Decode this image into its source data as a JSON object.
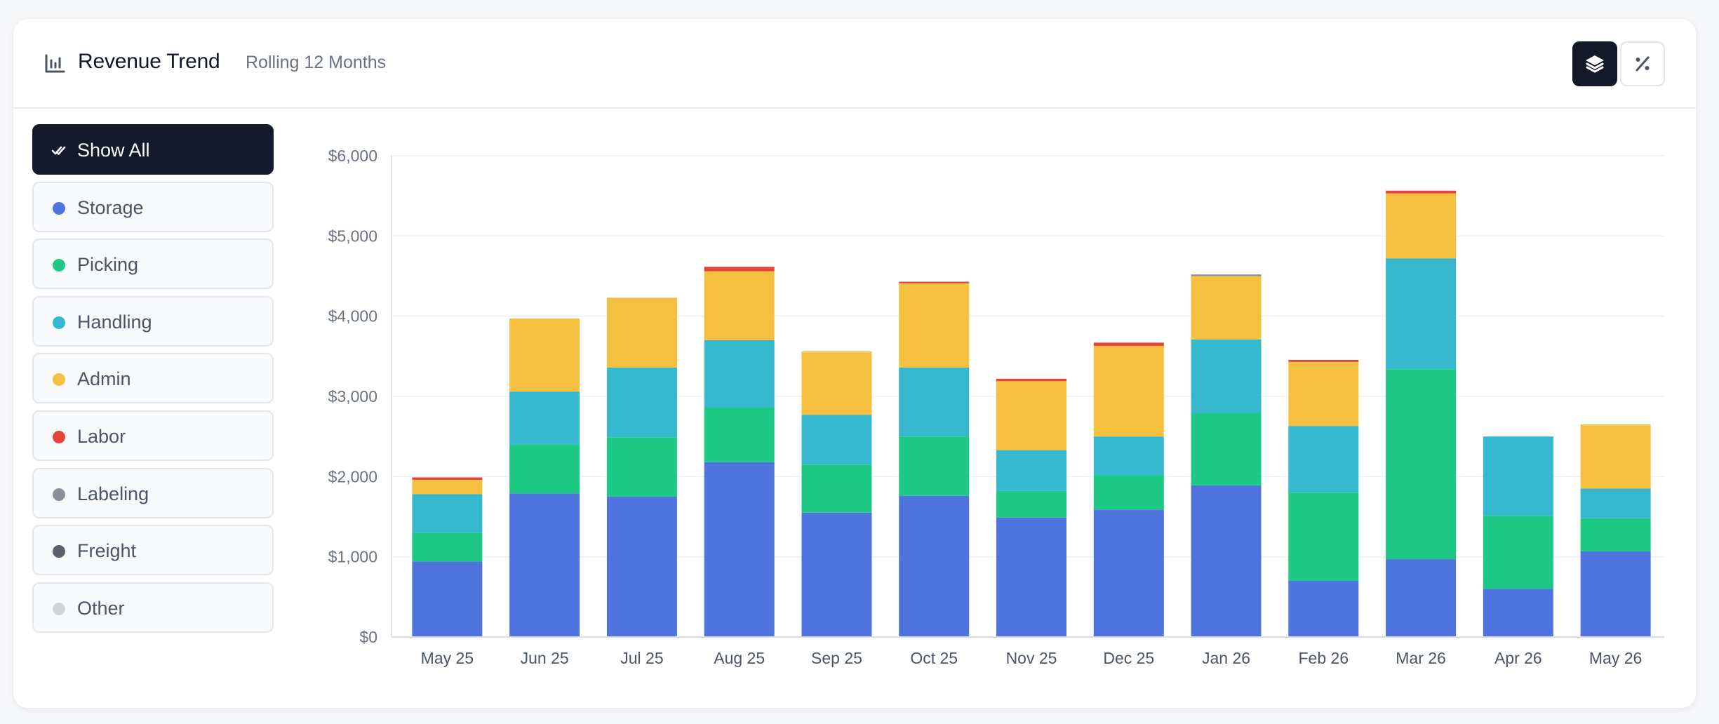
{
  "header": {
    "title": "Revenue Trend",
    "subtitle": "Rolling 12 Months",
    "title_icon": "bar-chart-icon",
    "buttons": [
      {
        "icon": "layers-icon",
        "active": true
      },
      {
        "icon": "percent-icon",
        "active": false
      }
    ]
  },
  "filters": [
    {
      "label": "Show All",
      "active": true,
      "icon": "check-double-icon"
    },
    {
      "label": "Storage",
      "color": "#4f74de"
    },
    {
      "label": "Picking",
      "color": "#1dc985"
    },
    {
      "label": "Handling",
      "color": "#36b8cf"
    },
    {
      "label": "Admin",
      "color": "#f5c040"
    },
    {
      "label": "Labor",
      "color": "#e5443b"
    },
    {
      "label": "Labeling",
      "color": "#8a8f9c"
    },
    {
      "label": "Freight",
      "color": "#5b5f6b"
    },
    {
      "label": "Other",
      "color": "#d1d5db"
    }
  ],
  "chart_data": {
    "type": "bar",
    "stacked": true,
    "categories": [
      "May 25",
      "Jun 25",
      "Jul 25",
      "Aug 25",
      "Sep 25",
      "Oct 25",
      "Nov 25",
      "Dec 25",
      "Jan 26",
      "Feb 26",
      "Mar 26",
      "Apr 26",
      "May 26"
    ],
    "y_ticks": [
      "$0",
      "$1,000",
      "$2,000",
      "$3,000",
      "$4,000",
      "$5,000",
      "$6,000"
    ],
    "ylim": [
      0,
      6000
    ],
    "grid": true,
    "series": [
      {
        "name": "Storage",
        "color": "#4f74de",
        "values": [
          940,
          1790,
          1750,
          2180,
          1550,
          1760,
          1490,
          1590,
          1890,
          700,
          970,
          600,
          1070
        ]
      },
      {
        "name": "Picking",
        "color": "#1dc985",
        "values": [
          360,
          610,
          740,
          680,
          600,
          740,
          330,
          430,
          900,
          1100,
          2370,
          910,
          410
        ]
      },
      {
        "name": "Handling",
        "color": "#36b8cf",
        "values": [
          480,
          660,
          870,
          840,
          620,
          860,
          510,
          480,
          920,
          830,
          1380,
          990,
          370
        ]
      },
      {
        "name": "Admin",
        "color": "#f5c040",
        "values": [
          180,
          910,
          870,
          860,
          790,
          1050,
          860,
          1130,
          790,
          800,
          810,
          0,
          800
        ]
      },
      {
        "name": "Labor",
        "color": "#e5443b",
        "values": [
          30,
          0,
          0,
          55,
          0,
          20,
          30,
          40,
          0,
          25,
          35,
          0,
          0
        ]
      },
      {
        "name": "Labeling",
        "color": "#8a8f9c",
        "values": [
          0,
          0,
          0,
          0,
          0,
          0,
          0,
          0,
          20,
          0,
          0,
          0,
          0
        ]
      },
      {
        "name": "Freight",
        "color": "#5b5f6b",
        "values": [
          0,
          0,
          0,
          0,
          0,
          0,
          0,
          0,
          0,
          0,
          0,
          0,
          0
        ]
      },
      {
        "name": "Other",
        "color": "#d1d5db",
        "values": [
          0,
          0,
          0,
          0,
          0,
          0,
          0,
          0,
          0,
          0,
          0,
          0,
          0
        ]
      }
    ]
  }
}
